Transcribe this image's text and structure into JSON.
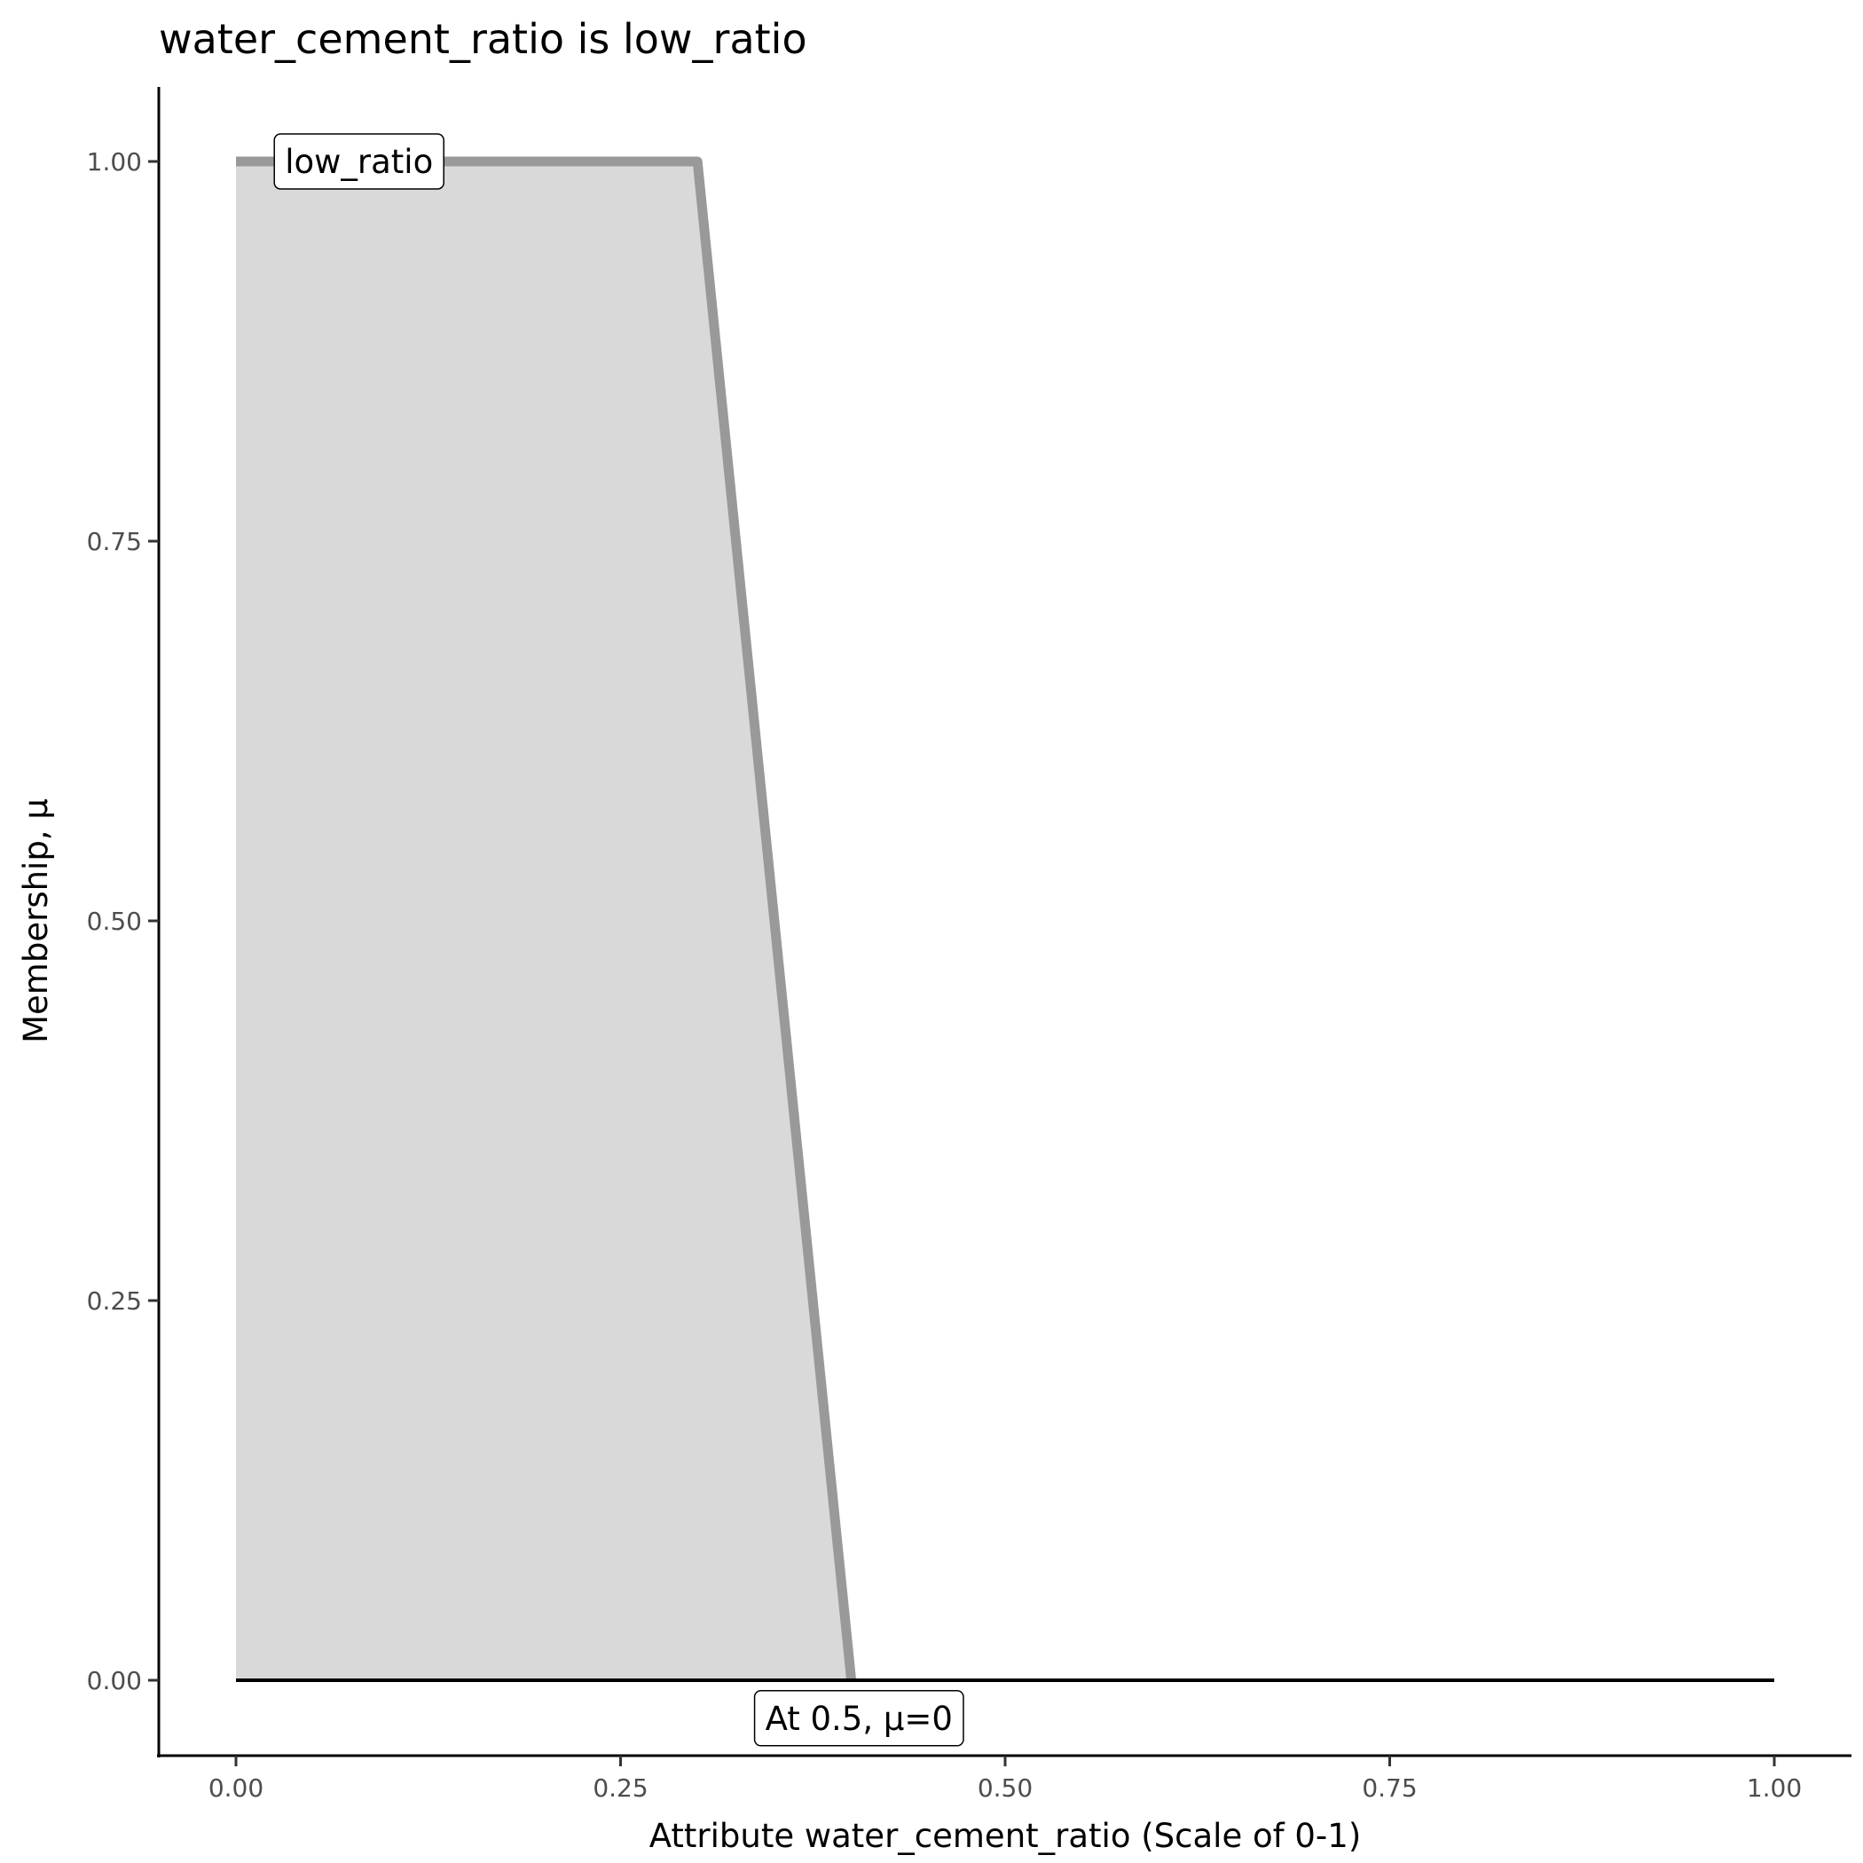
{
  "chart_data": {
    "type": "area",
    "title": "water_cement_ratio is low_ratio",
    "xlabel": "Attribute water_cement_ratio (Scale of 0-1)",
    "ylabel": "Membership, μ",
    "xlim": [
      -0.05,
      1.05
    ],
    "ylim": [
      -0.05,
      1.05
    ],
    "x_ticks": [
      0,
      0.25,
      0.5,
      0.75,
      1
    ],
    "x_tick_labels": [
      "0.00",
      "0.25",
      "0.50",
      "0.75",
      "1.00"
    ],
    "y_ticks": [
      0,
      0.25,
      0.5,
      0.75,
      1
    ],
    "y_tick_labels": [
      "0.00",
      "0.25",
      "0.50",
      "0.75",
      "1.00"
    ],
    "grid": false,
    "series": [
      {
        "x": [
          0,
          0.3,
          0.4
        ],
        "y": [
          1,
          1,
          0
        ],
        "line_color": "#999999",
        "fill_color": "#d9d9d9"
      }
    ],
    "baseline": {
      "x": [
        0,
        1
      ],
      "y": [
        0,
        0
      ],
      "color": "#000000"
    },
    "annotations": [
      {
        "text": "low_ratio",
        "x": 0.08,
        "y": 1.0
      },
      {
        "text": "At 0.5, μ=0",
        "x": 0.405,
        "y": -0.025
      }
    ]
  }
}
